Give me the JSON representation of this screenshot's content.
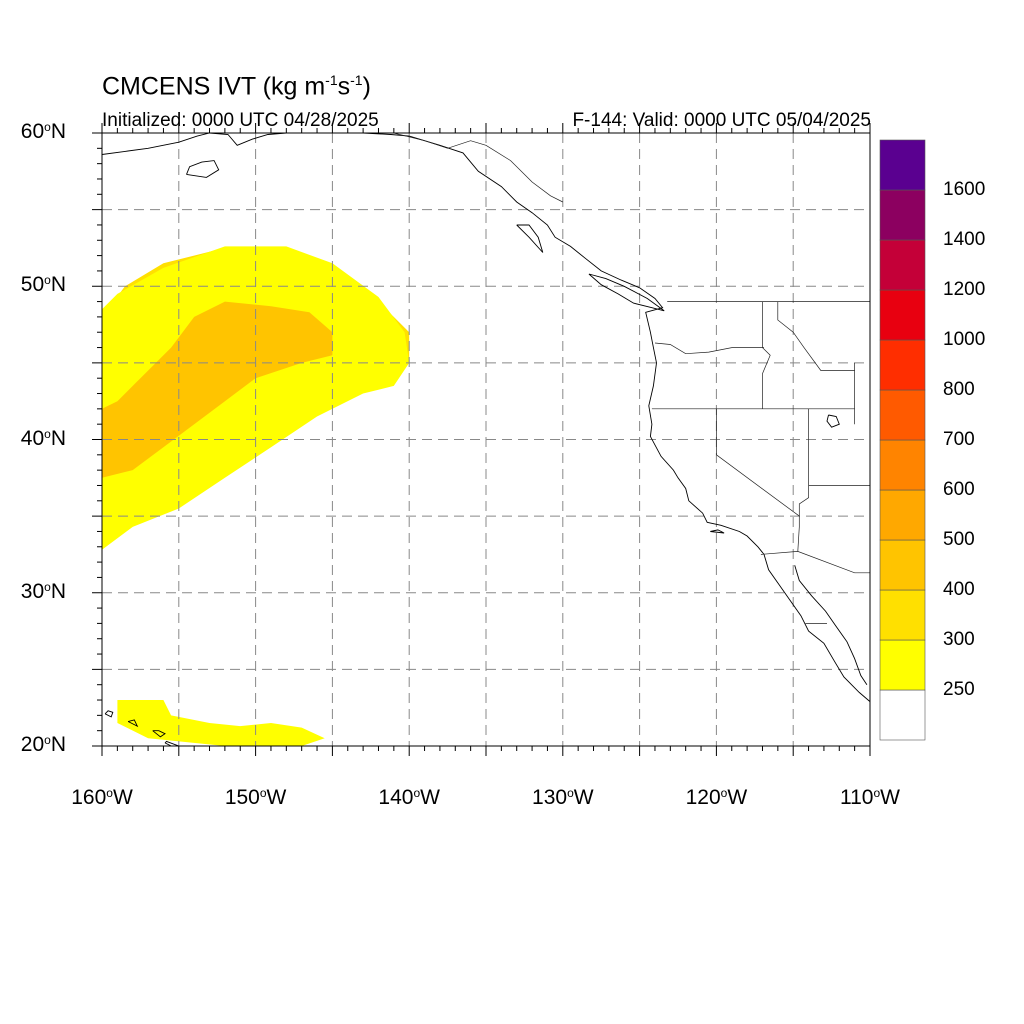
{
  "map": {
    "title_text": "CMCENS IVT (kg m",
    "title_sup1": "-1",
    "title_mid": "s",
    "title_sup2": "-1",
    "title_end": ")",
    "initialized": "Initialized: 0000 UTC 04/28/2025",
    "valid": "F-144: Valid: 0000 UTC 05/04/2025",
    "extent": {
      "lon_min": -160,
      "lon_max": -110,
      "lat_min": 20,
      "lat_max": 60
    },
    "lat_ticks": [
      {
        "value": 60,
        "num": "60",
        "hemi": "N"
      },
      {
        "value": 50,
        "num": "50",
        "hemi": "N"
      },
      {
        "value": 40,
        "num": "40",
        "hemi": "N"
      },
      {
        "value": 30,
        "num": "30",
        "hemi": "N"
      },
      {
        "value": 20,
        "num": "20",
        "hemi": "N"
      }
    ],
    "lon_ticks": [
      {
        "value": -160,
        "num": "160",
        "hemi": "W"
      },
      {
        "value": -150,
        "num": "150",
        "hemi": "W"
      },
      {
        "value": -140,
        "num": "140",
        "hemi": "W"
      },
      {
        "value": -130,
        "num": "130",
        "hemi": "W"
      },
      {
        "value": -120,
        "num": "120",
        "hemi": "W"
      },
      {
        "value": -110,
        "num": "110",
        "hemi": "W"
      }
    ],
    "grid_lats": [
      25,
      30,
      35,
      40,
      45,
      50,
      55
    ],
    "grid_lons": [
      -155,
      -150,
      -145,
      -140,
      -135,
      -130,
      -125,
      -120,
      -115
    ],
    "colorbar": {
      "colors": [
        "#ffffff",
        "#ffff00",
        "#ffe000",
        "#ffc400",
        "#ffa800",
        "#ff8400",
        "#ff5a00",
        "#ff2e00",
        "#e80010",
        "#c40038",
        "#8c0060",
        "#5a0090"
      ],
      "labels": [
        "250",
        "300",
        "400",
        "500",
        "600",
        "700",
        "800",
        "1000",
        "1200",
        "1400",
        "1600"
      ]
    },
    "ivt_regions": [
      {
        "level": "300-400",
        "color": "#ffe000",
        "lonlat": [
          [
            -160,
            34
          ],
          [
            -158,
            35
          ],
          [
            -156,
            36
          ],
          [
            -154,
            37
          ],
          [
            -152,
            38.5
          ],
          [
            -150,
            40
          ],
          [
            -147,
            41.5
          ],
          [
            -144,
            43
          ],
          [
            -141,
            44
          ],
          [
            -140,
            45
          ],
          [
            -140,
            47
          ],
          [
            -142,
            49
          ],
          [
            -145,
            51
          ],
          [
            -148,
            52
          ],
          [
            -152,
            52.5
          ],
          [
            -156,
            51.5
          ],
          [
            -158.5,
            50
          ],
          [
            -160,
            48
          ]
        ]
      },
      {
        "level": "250-300",
        "color": "#ffff00",
        "lonlat": [
          [
            -160,
            32.8
          ],
          [
            -158,
            34.3
          ],
          [
            -155,
            35.5
          ],
          [
            -152,
            37.5
          ],
          [
            -149,
            39.5
          ],
          [
            -146,
            41.5
          ],
          [
            -143,
            43
          ],
          [
            -141,
            43.5
          ],
          [
            -140,
            45
          ],
          [
            -140.3,
            47
          ],
          [
            -142,
            49.3
          ],
          [
            -145,
            51.5
          ],
          [
            -148,
            52.6
          ],
          [
            -152,
            52.6
          ],
          [
            -156,
            51.2
          ],
          [
            -159,
            49.5
          ],
          [
            -160,
            48.5
          ],
          [
            -160,
            47
          ]
        ]
      },
      {
        "level": "400-500",
        "color": "#ffc400",
        "lonlat": [
          [
            -160,
            37.5
          ],
          [
            -158,
            38
          ],
          [
            -156,
            39.5
          ],
          [
            -154,
            41
          ],
          [
            -152,
            42.5
          ],
          [
            -150,
            44
          ],
          [
            -147,
            45
          ],
          [
            -145,
            45.5
          ],
          [
            -145,
            47
          ],
          [
            -146.5,
            48.3
          ],
          [
            -149,
            48.7
          ],
          [
            -152,
            49
          ],
          [
            -154,
            48
          ],
          [
            -155.5,
            46
          ],
          [
            -157.5,
            44
          ],
          [
            -159,
            42.5
          ],
          [
            -160,
            42
          ]
        ]
      },
      {
        "level": "250-300",
        "color": "#ffff00",
        "lonlat": [
          [
            -159,
            23
          ],
          [
            -156,
            23
          ],
          [
            -155.5,
            22
          ],
          [
            -153,
            21.5
          ],
          [
            -151,
            21.3
          ],
          [
            -149,
            21.5
          ],
          [
            -147,
            21.2
          ],
          [
            -145.5,
            20.5
          ],
          [
            -147,
            20
          ],
          [
            -152,
            20
          ],
          [
            -157,
            20.5
          ],
          [
            -159,
            21.5
          ]
        ]
      }
    ],
    "coastlines": [
      {
        "name": "north-american-west-coast",
        "lonlat": [
          [
            -140,
            59.8
          ],
          [
            -138,
            59.2
          ],
          [
            -136.5,
            58.7
          ],
          [
            -135.5,
            57.5
          ],
          [
            -134,
            56.5
          ],
          [
            -133,
            55.5
          ],
          [
            -132,
            54.8
          ],
          [
            -131,
            54
          ],
          [
            -130.5,
            53.2
          ],
          [
            -129.5,
            52.6
          ],
          [
            -128.5,
            51.8
          ],
          [
            -127.5,
            51
          ],
          [
            -126.2,
            50.4
          ],
          [
            -125,
            49.9
          ],
          [
            -124,
            49.2
          ],
          [
            -123.5,
            48.6
          ],
          [
            -124.6,
            48.3
          ],
          [
            -124.3,
            47
          ],
          [
            -124.1,
            46
          ],
          [
            -123.9,
            45
          ],
          [
            -124.1,
            43.5
          ],
          [
            -124.4,
            42.2
          ],
          [
            -124.2,
            41
          ],
          [
            -124.3,
            40.2
          ],
          [
            -123.6,
            38.9
          ],
          [
            -122.8,
            38
          ],
          [
            -122.5,
            37.5
          ],
          [
            -122,
            36.8
          ],
          [
            -121.8,
            36
          ],
          [
            -120.9,
            35.2
          ],
          [
            -120.6,
            34.6
          ],
          [
            -119.7,
            34.4
          ],
          [
            -118.5,
            34
          ],
          [
            -118,
            33.7
          ],
          [
            -117.3,
            33
          ],
          [
            -116.9,
            32.5
          ],
          [
            -116.6,
            31.5
          ],
          [
            -115.9,
            30.5
          ],
          [
            -115.2,
            29.5
          ],
          [
            -114.5,
            28.5
          ],
          [
            -114,
            27.5
          ],
          [
            -113,
            26.7
          ],
          [
            -112.3,
            25.5
          ],
          [
            -111.7,
            24.5
          ],
          [
            -110.7,
            23.5
          ],
          [
            -110,
            22.9
          ]
        ]
      },
      {
        "name": "gulf-of-california-coast",
        "lonlat": [
          [
            -114.9,
            31.8
          ],
          [
            -114.6,
            30.8
          ],
          [
            -113.8,
            29.8
          ],
          [
            -112.9,
            28.8
          ],
          [
            -112.2,
            27.8
          ],
          [
            -111.5,
            26.8
          ],
          [
            -111,
            25.7
          ],
          [
            -110.6,
            24.6
          ],
          [
            -110.2,
            24
          ]
        ]
      },
      {
        "name": "alaska-coast",
        "lonlat": [
          [
            -160,
            58.6
          ],
          [
            -158.5,
            58.8
          ],
          [
            -157,
            59
          ],
          [
            -155,
            59.4
          ],
          [
            -153.8,
            59.8
          ],
          [
            -153,
            60
          ],
          [
            -151.8,
            59.9
          ],
          [
            -151.2,
            59.2
          ],
          [
            -150.2,
            59.6
          ],
          [
            -149.2,
            59.9
          ],
          [
            -148,
            60
          ],
          [
            -146.5,
            60
          ],
          [
            -145,
            60
          ],
          [
            -143,
            60
          ],
          [
            -141.2,
            59.9
          ],
          [
            -140,
            59.8
          ]
        ]
      },
      {
        "name": "kodiak-island",
        "lonlat": [
          [
            -154.5,
            57.3
          ],
          [
            -153.2,
            57.1
          ],
          [
            -152.4,
            57.6
          ],
          [
            -152.7,
            58.2
          ],
          [
            -153.5,
            58.1
          ],
          [
            -154.3,
            57.8
          ],
          [
            -154.5,
            57.3
          ]
        ]
      },
      {
        "name": "big-island-hawaii",
        "lonlat": [
          [
            -155.9,
            20.2
          ],
          [
            -155.1,
            19.8
          ],
          [
            -155,
            20
          ],
          [
            -155.8,
            20.3
          ],
          [
            -155.9,
            20.2
          ]
        ]
      },
      {
        "name": "maui",
        "lonlat": [
          [
            -156.7,
            21
          ],
          [
            -156.2,
            20.6
          ],
          [
            -155.9,
            20.8
          ],
          [
            -156.3,
            21
          ],
          [
            -156.7,
            21
          ]
        ]
      },
      {
        "name": "oahu",
        "lonlat": [
          [
            -158.3,
            21.6
          ],
          [
            -157.7,
            21.3
          ],
          [
            -157.9,
            21.7
          ],
          [
            -158.3,
            21.6
          ]
        ]
      },
      {
        "name": "kauai",
        "lonlat": [
          [
            -159.8,
            22.1
          ],
          [
            -159.4,
            21.9
          ],
          [
            -159.3,
            22.2
          ],
          [
            -159.6,
            22.3
          ],
          [
            -159.8,
            22.1
          ]
        ]
      },
      {
        "name": "vancouver-island",
        "lonlat": [
          [
            -128.3,
            50.8
          ],
          [
            -127.2,
            50.5
          ],
          [
            -126,
            50
          ],
          [
            -124.5,
            49.2
          ],
          [
            -123.4,
            48.4
          ],
          [
            -124.2,
            48.6
          ],
          [
            -125.4,
            48.9
          ],
          [
            -126.4,
            49.5
          ],
          [
            -127.5,
            50.1
          ],
          [
            -128.3,
            50.8
          ]
        ]
      },
      {
        "name": "haida-gwaii",
        "lonlat": [
          [
            -133,
            54
          ],
          [
            -132.2,
            53.2
          ],
          [
            -131.3,
            52.2
          ],
          [
            -131.6,
            53.2
          ],
          [
            -132.2,
            54
          ],
          [
            -133,
            54
          ]
        ]
      },
      {
        "name": "great-salt-lake",
        "lonlat": [
          [
            -112.7,
            41.6
          ],
          [
            -112.2,
            41.5
          ],
          [
            -112,
            41
          ],
          [
            -112.5,
            40.8
          ],
          [
            -112.8,
            41.2
          ],
          [
            -112.7,
            41.6
          ]
        ]
      },
      {
        "name": "channel-islands",
        "lonlat": [
          [
            -120.4,
            34
          ],
          [
            -119.5,
            33.9
          ],
          [
            -119.9,
            34.1
          ],
          [
            -120.4,
            34
          ]
        ]
      }
    ],
    "borders": [
      {
        "name": "canada-us-49",
        "lonlat": [
          [
            -123.2,
            49
          ],
          [
            -117,
            49
          ],
          [
            -114,
            49
          ],
          [
            -111,
            49
          ],
          [
            -110,
            49
          ]
        ]
      },
      {
        "name": "canada-alaska",
        "lonlat": [
          [
            -141,
            60
          ],
          [
            -139,
            59.5
          ],
          [
            -137.5,
            59
          ],
          [
            -136,
            59.5
          ],
          [
            -135,
            59.2
          ],
          [
            -133.4,
            58.2
          ],
          [
            -132,
            56.8
          ],
          [
            -130.8,
            55.9
          ],
          [
            -130,
            55.5
          ]
        ]
      },
      {
        "name": "or-wa",
        "lonlat": [
          [
            -124,
            46.3
          ],
          [
            -123,
            46.2
          ],
          [
            -122,
            45.6
          ],
          [
            -120.5,
            45.7
          ],
          [
            -119,
            46
          ],
          [
            -116.9,
            46
          ]
        ]
      },
      {
        "name": "or-ca-nv",
        "lonlat": [
          [
            -124.2,
            42
          ],
          [
            -117,
            42
          ],
          [
            -114,
            42
          ],
          [
            -111,
            42
          ]
        ]
      },
      {
        "name": "id-west",
        "lonlat": [
          [
            -117,
            49
          ],
          [
            -117,
            46
          ],
          [
            -116.5,
            45.5
          ],
          [
            -117,
            44.3
          ],
          [
            -117,
            42
          ]
        ]
      },
      {
        "name": "ca-nv",
        "lonlat": [
          [
            -120,
            42
          ],
          [
            -120,
            39
          ],
          [
            -114.6,
            35
          ],
          [
            -114.6,
            34.3
          ],
          [
            -114.7,
            32.7
          ]
        ]
      },
      {
        "name": "nv-az-ut",
        "lonlat": [
          [
            -114,
            42
          ],
          [
            -114,
            36.2
          ],
          [
            -114.6,
            35.8
          ],
          [
            -114.6,
            35
          ]
        ]
      },
      {
        "name": "az-ut-line",
        "lonlat": [
          [
            -114,
            37
          ],
          [
            -110,
            37
          ]
        ]
      },
      {
        "name": "us-mexico",
        "lonlat": [
          [
            -117.1,
            32.5
          ],
          [
            -114.7,
            32.7
          ],
          [
            -111,
            31.3
          ],
          [
            -110,
            31.3
          ]
        ]
      },
      {
        "name": "id-mt",
        "lonlat": [
          [
            -116,
            49
          ],
          [
            -116,
            47.8
          ],
          [
            -115,
            47
          ],
          [
            -114.3,
            46
          ],
          [
            -113.2,
            44.5
          ],
          [
            -112,
            44.5
          ],
          [
            -111,
            44.5
          ]
        ]
      },
      {
        "name": "wy-id",
        "lonlat": [
          [
            -111,
            45
          ],
          [
            -111,
            44.3
          ],
          [
            -111,
            41
          ]
        ]
      },
      {
        "name": "baja-states",
        "lonlat": [
          [
            -114.2,
            28
          ],
          [
            -112.8,
            28
          ]
        ]
      }
    ]
  }
}
